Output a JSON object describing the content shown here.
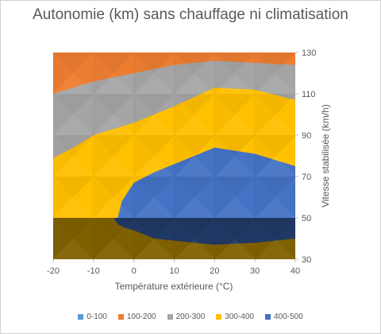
{
  "chart_data": {
    "type": "surface-contour",
    "title": "Autonomie (km) sans chauffage ni climatisation",
    "xlabel": "Température extérieure (°C)",
    "ylabel": "Vitesse stabilisée (km/h)",
    "xlim": [
      -20,
      40
    ],
    "ylim": [
      30,
      130
    ],
    "x_ticks": [
      "-20",
      "-10",
      "0",
      "10",
      "20",
      "30",
      "40"
    ],
    "y_ticks": [
      "30",
      "50",
      "70",
      "90",
      "110",
      "130"
    ],
    "legend_position": "bottom",
    "legend": [
      {
        "label": "0-100",
        "color": "#5b9bd5"
      },
      {
        "label": "100-200",
        "color": "#ed7d31"
      },
      {
        "label": "200-300",
        "color": "#a5a5a5"
      },
      {
        "label": "300-400",
        "color": "#ffc000"
      },
      {
        "label": "400-500",
        "color": "#4472c4"
      }
    ],
    "bands": [
      {
        "range": "400-500",
        "color": "#4472c4",
        "boundary": [
          [
            -4,
            50
          ],
          [
            -3,
            58
          ],
          [
            0,
            67
          ],
          [
            5,
            72
          ],
          [
            10,
            76
          ],
          [
            15,
            80
          ],
          [
            20,
            84
          ],
          [
            30,
            81
          ],
          [
            40,
            75
          ],
          [
            40,
            50
          ]
        ]
      },
      {
        "range": "300-400",
        "color": "#ffc000",
        "boundary": [
          [
            -20,
            79
          ],
          [
            -15,
            84
          ],
          [
            -10,
            90
          ],
          [
            0,
            96
          ],
          [
            10,
            104
          ],
          [
            20,
            113
          ],
          [
            30,
            112
          ],
          [
            40,
            107
          ],
          [
            40,
            50
          ],
          [
            -20,
            50
          ]
        ]
      },
      {
        "range": "200-300",
        "color": "#a5a5a5",
        "boundary": [
          [
            -20,
            110
          ],
          [
            -15,
            113
          ],
          [
            -10,
            116
          ],
          [
            0,
            120
          ],
          [
            10,
            124
          ],
          [
            20,
            126
          ],
          [
            40,
            124
          ],
          [
            40,
            50
          ],
          [
            -20,
            50
          ]
        ]
      },
      {
        "range": "100-200",
        "color": "#ed7d31",
        "boundary": [
          [
            -20,
            130
          ],
          [
            10,
            130
          ],
          [
            20,
            130
          ],
          [
            35,
            130
          ],
          [
            38,
            127
          ],
          [
            40,
            126
          ],
          [
            40,
            50
          ],
          [
            -20,
            50
          ]
        ]
      }
    ],
    "floor": {
      "color": "#7f6000",
      "y_top": 50,
      "dark_band_range": "400-500",
      "dark_band_color": "#203864",
      "dark_boundary": [
        [
          -5,
          50
        ],
        [
          -4,
          47
        ],
        [
          -2,
          45
        ],
        [
          0,
          44
        ],
        [
          5,
          40
        ],
        [
          10,
          39
        ],
        [
          20,
          37
        ],
        [
          30,
          38
        ],
        [
          40,
          40
        ],
        [
          40,
          50
        ]
      ]
    }
  }
}
